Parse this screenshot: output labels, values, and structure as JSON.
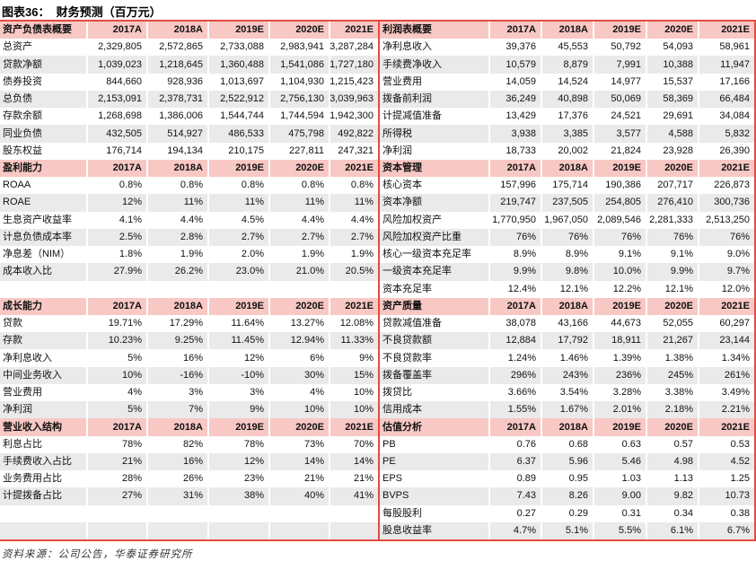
{
  "title": "图表36：  财务预测（百万元）",
  "source": "资料来源：公司公告，华泰证券研究所",
  "columns": [
    "2017A",
    "2018A",
    "2019E",
    "2020E",
    "2021E"
  ],
  "left_table": {
    "rows": [
      {
        "type": "header",
        "label": "资产负债表概要"
      },
      {
        "type": "data",
        "label": "总资产",
        "values": [
          "2,329,805",
          "2,572,865",
          "2,733,088",
          "2,983,941",
          "3,287,284"
        ]
      },
      {
        "type": "data",
        "label": "贷款净额",
        "values": [
          "1,039,023",
          "1,218,645",
          "1,360,488",
          "1,541,086",
          "1,727,180"
        ]
      },
      {
        "type": "data",
        "label": "债券投资",
        "values": [
          "844,660",
          "928,936",
          "1,013,697",
          "1,104,930",
          "1,215,423"
        ]
      },
      {
        "type": "data",
        "label": "总负债",
        "values": [
          "2,153,091",
          "2,378,731",
          "2,522,912",
          "2,756,130",
          "3,039,963"
        ]
      },
      {
        "type": "data",
        "label": "存款余额",
        "values": [
          "1,268,698",
          "1,386,006",
          "1,544,744",
          "1,744,594",
          "1,942,300"
        ]
      },
      {
        "type": "data",
        "label": "同业负债",
        "values": [
          "432,505",
          "514,927",
          "486,533",
          "475,798",
          "492,822"
        ]
      },
      {
        "type": "data",
        "label": "股东权益",
        "values": [
          "176,714",
          "194,134",
          "210,175",
          "227,811",
          "247,321"
        ]
      },
      {
        "type": "header",
        "label": "盈利能力"
      },
      {
        "type": "data",
        "label": "ROAA",
        "values": [
          "0.8%",
          "0.8%",
          "0.8%",
          "0.8%",
          "0.8%"
        ]
      },
      {
        "type": "data",
        "label": "ROAE",
        "values": [
          "12%",
          "11%",
          "11%",
          "11%",
          "11%"
        ]
      },
      {
        "type": "data",
        "label": "生息资产收益率",
        "values": [
          "4.1%",
          "4.4%",
          "4.5%",
          "4.4%",
          "4.4%"
        ]
      },
      {
        "type": "data",
        "label": "计息负债成本率",
        "values": [
          "2.5%",
          "2.8%",
          "2.7%",
          "2.7%",
          "2.7%"
        ]
      },
      {
        "type": "data",
        "label": "净息差（NIM）",
        "values": [
          "1.8%",
          "1.9%",
          "2.0%",
          "1.9%",
          "1.9%"
        ]
      },
      {
        "type": "data",
        "label": "成本收入比",
        "values": [
          "27.9%",
          "26.2%",
          "23.0%",
          "21.0%",
          "20.5%"
        ]
      },
      {
        "type": "empty",
        "label": "",
        "values": [
          "",
          "",
          "",
          "",
          ""
        ]
      },
      {
        "type": "header",
        "label": "成长能力"
      },
      {
        "type": "data",
        "label": "贷款",
        "values": [
          "19.71%",
          "17.29%",
          "11.64%",
          "13.27%",
          "12.08%"
        ]
      },
      {
        "type": "data",
        "label": "存款",
        "values": [
          "10.23%",
          "9.25%",
          "11.45%",
          "12.94%",
          "11.33%"
        ]
      },
      {
        "type": "data",
        "label": "净利息收入",
        "values": [
          "5%",
          "16%",
          "12%",
          "6%",
          "9%"
        ]
      },
      {
        "type": "data",
        "label": "中间业务收入",
        "values": [
          "10%",
          "-16%",
          "-10%",
          "30%",
          "15%"
        ]
      },
      {
        "type": "data",
        "label": "营业费用",
        "values": [
          "4%",
          "3%",
          "3%",
          "4%",
          "10%"
        ]
      },
      {
        "type": "data",
        "label": "净利润",
        "values": [
          "5%",
          "7%",
          "9%",
          "10%",
          "10%"
        ]
      },
      {
        "type": "header",
        "label": "营业收入结构"
      },
      {
        "type": "data",
        "label": "利息占比",
        "values": [
          "78%",
          "82%",
          "78%",
          "73%",
          "70%"
        ]
      },
      {
        "type": "data",
        "label": "手续费收入占比",
        "values": [
          "21%",
          "16%",
          "12%",
          "14%",
          "14%"
        ]
      },
      {
        "type": "data",
        "label": "业务费用占比",
        "values": [
          "28%",
          "26%",
          "23%",
          "21%",
          "21%"
        ]
      },
      {
        "type": "data",
        "label": "计提拨备占比",
        "values": [
          "27%",
          "31%",
          "38%",
          "40%",
          "41%"
        ]
      },
      {
        "type": "empty",
        "label": "",
        "values": [
          "",
          "",
          "",
          "",
          ""
        ]
      },
      {
        "type": "empty",
        "label": "",
        "values": [
          "",
          "",
          "",
          "",
          ""
        ]
      }
    ]
  },
  "right_table": {
    "rows": [
      {
        "type": "header",
        "label": "利润表概要"
      },
      {
        "type": "data",
        "label": "净利息收入",
        "values": [
          "39,376",
          "45,553",
          "50,792",
          "54,093",
          "58,961"
        ]
      },
      {
        "type": "data",
        "label": "手续费净收入",
        "values": [
          "10,579",
          "8,879",
          "7,991",
          "10,388",
          "11,947"
        ]
      },
      {
        "type": "data",
        "label": "营业费用",
        "values": [
          "14,059",
          "14,524",
          "14,977",
          "15,537",
          "17,166"
        ]
      },
      {
        "type": "data",
        "label": "拨备前利润",
        "values": [
          "36,249",
          "40,898",
          "50,069",
          "58,369",
          "66,484"
        ]
      },
      {
        "type": "data",
        "label": "计提减值准备",
        "values": [
          "13,429",
          "17,376",
          "24,521",
          "29,691",
          "34,084"
        ]
      },
      {
        "type": "data",
        "label": "所得税",
        "values": [
          "3,938",
          "3,385",
          "3,577",
          "4,588",
          "5,832"
        ]
      },
      {
        "type": "data",
        "label": "净利润",
        "values": [
          "18,733",
          "20,002",
          "21,824",
          "23,928",
          "26,390"
        ]
      },
      {
        "type": "header",
        "label": "资本管理"
      },
      {
        "type": "data",
        "label": "核心资本",
        "values": [
          "157,996",
          "175,714",
          "190,386",
          "207,717",
          "226,873"
        ]
      },
      {
        "type": "data",
        "label": "资本净额",
        "values": [
          "219,747",
          "237,505",
          "254,805",
          "276,410",
          "300,736"
        ]
      },
      {
        "type": "data",
        "label": "风险加权资产",
        "values": [
          "1,770,950",
          "1,967,050",
          "2,089,546",
          "2,281,333",
          "2,513,250"
        ]
      },
      {
        "type": "data",
        "label": "风险加权资产比重",
        "values": [
          "76%",
          "76%",
          "76%",
          "76%",
          "76%"
        ]
      },
      {
        "type": "data",
        "label": "核心一级资本充足率",
        "values": [
          "8.9%",
          "8.9%",
          "9.1%",
          "9.1%",
          "9.0%"
        ]
      },
      {
        "type": "data",
        "label": "一级资本充足率",
        "values": [
          "9.9%",
          "9.8%",
          "10.0%",
          "9.9%",
          "9.7%"
        ]
      },
      {
        "type": "data",
        "label": "资本充足率",
        "values": [
          "12.4%",
          "12.1%",
          "12.2%",
          "12.1%",
          "12.0%"
        ]
      },
      {
        "type": "header",
        "label": "资产质量"
      },
      {
        "type": "data",
        "label": "贷款减值准备",
        "values": [
          "38,078",
          "43,166",
          "44,673",
          "52,055",
          "60,297"
        ]
      },
      {
        "type": "data",
        "label": "不良贷款额",
        "values": [
          "12,884",
          "17,792",
          "18,911",
          "21,267",
          "23,144"
        ]
      },
      {
        "type": "data",
        "label": "不良贷款率",
        "values": [
          "1.24%",
          "1.46%",
          "1.39%",
          "1.38%",
          "1.34%"
        ]
      },
      {
        "type": "data",
        "label": "拨备覆盖率",
        "values": [
          "296%",
          "243%",
          "236%",
          "245%",
          "261%"
        ]
      },
      {
        "type": "data",
        "label": "拨贷比",
        "values": [
          "3.66%",
          "3.54%",
          "3.28%",
          "3.38%",
          "3.49%"
        ]
      },
      {
        "type": "data",
        "label": "信用成本",
        "values": [
          "1.55%",
          "1.67%",
          "2.01%",
          "2.18%",
          "2.21%"
        ]
      },
      {
        "type": "header",
        "label": "估值分析"
      },
      {
        "type": "data",
        "label": "PB",
        "values": [
          "0.76",
          "0.68",
          "0.63",
          "0.57",
          "0.53"
        ]
      },
      {
        "type": "data",
        "label": "PE",
        "values": [
          "6.37",
          "5.96",
          "5.46",
          "4.98",
          "4.52"
        ]
      },
      {
        "type": "data",
        "label": "EPS",
        "values": [
          "0.89",
          "0.95",
          "1.03",
          "1.13",
          "1.25"
        ]
      },
      {
        "type": "data",
        "label": "BVPS",
        "values": [
          "7.43",
          "8.26",
          "9.00",
          "9.82",
          "10.73"
        ]
      },
      {
        "type": "data",
        "label": "每股股利",
        "values": [
          "0.27",
          "0.29",
          "0.31",
          "0.34",
          "0.38"
        ]
      },
      {
        "type": "data",
        "label": "股息收益率",
        "values": [
          "4.7%",
          "5.1%",
          "5.5%",
          "6.1%",
          "6.7%"
        ]
      }
    ]
  }
}
